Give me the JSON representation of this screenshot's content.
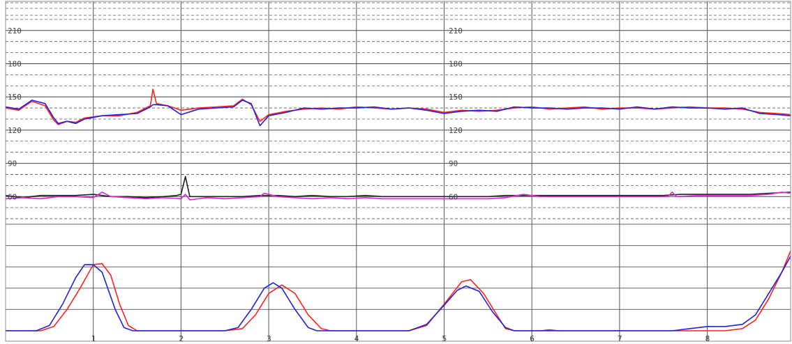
{
  "chart_data": {
    "type": "line",
    "grid": true,
    "x_ticks": [
      "1",
      "2",
      "3",
      "4",
      "5",
      "6",
      "7",
      "8"
    ],
    "xlim": [
      0,
      8.95
    ],
    "upper_panel": {
      "ylim": [
        35,
        230
      ],
      "y_ticks": [
        60,
        90,
        120,
        150,
        180,
        210
      ],
      "y_tick_labels": [
        "60",
        "90",
        "120",
        "150",
        "180",
        "210"
      ],
      "series": [
        {
          "color": "#ff2020",
          "points": [
            [
              0.0,
              140
            ],
            [
              0.15,
              138
            ],
            [
              0.3,
              146
            ],
            [
              0.45,
              142
            ],
            [
              0.55,
              129
            ],
            [
              0.6,
              125
            ],
            [
              0.7,
              128
            ],
            [
              0.8,
              127
            ],
            [
              0.9,
              131
            ],
            [
              1.1,
              133
            ],
            [
              1.3,
              133
            ],
            [
              1.5,
              136
            ],
            [
              1.65,
              142
            ],
            [
              1.68,
              157
            ],
            [
              1.72,
              144
            ],
            [
              1.85,
              142
            ],
            [
              2.0,
              138
            ],
            [
              2.2,
              140
            ],
            [
              2.4,
              141
            ],
            [
              2.6,
              142
            ],
            [
              2.7,
              148
            ],
            [
              2.8,
              143
            ],
            [
              2.9,
              128
            ],
            [
              3.0,
              134
            ],
            [
              3.2,
              137
            ],
            [
              3.4,
              139
            ],
            [
              3.6,
              140
            ],
            [
              3.8,
              139
            ],
            [
              4.0,
              141
            ],
            [
              4.2,
              140
            ],
            [
              4.4,
              139
            ],
            [
              4.6,
              140
            ],
            [
              4.8,
              139
            ],
            [
              5.0,
              136
            ],
            [
              5.2,
              138
            ],
            [
              5.4,
              137
            ],
            [
              5.6,
              138
            ],
            [
              5.8,
              140
            ],
            [
              6.0,
              141
            ],
            [
              6.2,
              139
            ],
            [
              6.4,
              140
            ],
            [
              6.6,
              141
            ],
            [
              6.8,
              139
            ],
            [
              7.0,
              140
            ],
            [
              7.2,
              140
            ],
            [
              7.4,
              139
            ],
            [
              7.6,
              140
            ],
            [
              7.8,
              141
            ],
            [
              8.0,
              140
            ],
            [
              8.2,
              140
            ],
            [
              8.4,
              139
            ],
            [
              8.6,
              136
            ],
            [
              8.8,
              135
            ],
            [
              8.95,
              134
            ]
          ]
        },
        {
          "color": "#2020e0",
          "points": [
            [
              0.0,
              141
            ],
            [
              0.15,
              139
            ],
            [
              0.3,
              147
            ],
            [
              0.45,
              144
            ],
            [
              0.55,
              131
            ],
            [
              0.6,
              126
            ],
            [
              0.7,
              128
            ],
            [
              0.8,
              126
            ],
            [
              0.9,
              130
            ],
            [
              1.1,
              133
            ],
            [
              1.3,
              134
            ],
            [
              1.5,
              135
            ],
            [
              1.65,
              141
            ],
            [
              1.68,
              143
            ],
            [
              1.72,
              143
            ],
            [
              1.85,
              142
            ],
            [
              2.0,
              134
            ],
            [
              2.2,
              139
            ],
            [
              2.4,
              140
            ],
            [
              2.6,
              141
            ],
            [
              2.7,
              147
            ],
            [
              2.8,
              144
            ],
            [
              2.9,
              124
            ],
            [
              3.0,
              133
            ],
            [
              3.2,
              136
            ],
            [
              3.4,
              140
            ],
            [
              3.6,
              139
            ],
            [
              3.8,
              140
            ],
            [
              4.0,
              140
            ],
            [
              4.2,
              141
            ],
            [
              4.4,
              139
            ],
            [
              4.6,
              140
            ],
            [
              4.8,
              138
            ],
            [
              5.0,
              135
            ],
            [
              5.2,
              137
            ],
            [
              5.4,
              138
            ],
            [
              5.6,
              137
            ],
            [
              5.8,
              141
            ],
            [
              6.0,
              140
            ],
            [
              6.2,
              140
            ],
            [
              6.4,
              139
            ],
            [
              6.6,
              140
            ],
            [
              6.8,
              140
            ],
            [
              7.0,
              139
            ],
            [
              7.2,
              141
            ],
            [
              7.4,
              139
            ],
            [
              7.6,
              141
            ],
            [
              7.8,
              140
            ],
            [
              8.0,
              140
            ],
            [
              8.2,
              139
            ],
            [
              8.4,
              140
            ],
            [
              8.6,
              135
            ],
            [
              8.8,
              134
            ],
            [
              8.95,
              133
            ]
          ]
        },
        {
          "color": "#202020",
          "points": [
            [
              0.0,
              61
            ],
            [
              0.2,
              59
            ],
            [
              0.4,
              61
            ],
            [
              0.6,
              61
            ],
            [
              0.8,
              61
            ],
            [
              1.0,
              62
            ],
            [
              1.2,
              60
            ],
            [
              1.4,
              60
            ],
            [
              1.6,
              59
            ],
            [
              1.8,
              60
            ],
            [
              1.95,
              61
            ],
            [
              2.0,
              62
            ],
            [
              2.05,
              78
            ],
            [
              2.1,
              60
            ],
            [
              2.3,
              60
            ],
            [
              2.5,
              60
            ],
            [
              2.7,
              60
            ],
            [
              2.9,
              61
            ],
            [
              3.1,
              61
            ],
            [
              3.3,
              60
            ],
            [
              3.5,
              61
            ],
            [
              3.7,
              60
            ],
            [
              3.9,
              60
            ],
            [
              4.1,
              61
            ],
            [
              4.3,
              60
            ],
            [
              4.5,
              60
            ],
            [
              4.7,
              60
            ],
            [
              4.9,
              60
            ],
            [
              5.1,
              60
            ],
            [
              5.3,
              60
            ],
            [
              5.5,
              60
            ],
            [
              5.7,
              61
            ],
            [
              5.9,
              61
            ],
            [
              6.1,
              61
            ],
            [
              6.3,
              61
            ],
            [
              6.5,
              61
            ],
            [
              6.7,
              61
            ],
            [
              6.9,
              61
            ],
            [
              7.1,
              61
            ],
            [
              7.3,
              61
            ],
            [
              7.5,
              61
            ],
            [
              7.7,
              62
            ],
            [
              7.9,
              62
            ],
            [
              8.1,
              62
            ],
            [
              8.3,
              62
            ],
            [
              8.5,
              62
            ],
            [
              8.7,
              63
            ],
            [
              8.95,
              64
            ]
          ]
        },
        {
          "color": "#e020e0",
          "points": [
            [
              0.0,
              58
            ],
            [
              0.2,
              59
            ],
            [
              0.4,
              58
            ],
            [
              0.6,
              60
            ],
            [
              0.8,
              60
            ],
            [
              1.0,
              59
            ],
            [
              1.1,
              64
            ],
            [
              1.2,
              60
            ],
            [
              1.4,
              59
            ],
            [
              1.6,
              58
            ],
            [
              1.8,
              59
            ],
            [
              2.0,
              58
            ],
            [
              2.05,
              62
            ],
            [
              2.1,
              57
            ],
            [
              2.3,
              59
            ],
            [
              2.5,
              58
            ],
            [
              2.7,
              59
            ],
            [
              2.9,
              60
            ],
            [
              2.95,
              63
            ],
            [
              3.1,
              60
            ],
            [
              3.3,
              59
            ],
            [
              3.5,
              58
            ],
            [
              3.7,
              59
            ],
            [
              3.9,
              58
            ],
            [
              4.1,
              59
            ],
            [
              4.3,
              58
            ],
            [
              4.5,
              58
            ],
            [
              4.7,
              58
            ],
            [
              4.9,
              58
            ],
            [
              5.1,
              58
            ],
            [
              5.3,
              58
            ],
            [
              5.5,
              58
            ],
            [
              5.7,
              59
            ],
            [
              5.9,
              62
            ],
            [
              6.1,
              60
            ],
            [
              6.3,
              60
            ],
            [
              6.5,
              60
            ],
            [
              6.7,
              60
            ],
            [
              6.9,
              60
            ],
            [
              7.1,
              60
            ],
            [
              7.3,
              60
            ],
            [
              7.55,
              60
            ],
            [
              7.6,
              64
            ],
            [
              7.65,
              60
            ],
            [
              7.9,
              61
            ],
            [
              8.1,
              61
            ],
            [
              8.3,
              61
            ],
            [
              8.5,
              61
            ],
            [
              8.7,
              62
            ],
            [
              8.85,
              64
            ],
            [
              8.95,
              63
            ]
          ]
        }
      ]
    },
    "lower_panel": {
      "ylim": [
        0,
        100
      ],
      "y_gridlines": [
        20,
        40,
        60,
        80
      ],
      "series": [
        {
          "color": "#ff2020",
          "points": [
            [
              0.0,
              0
            ],
            [
              0.4,
              0
            ],
            [
              0.55,
              4
            ],
            [
              0.7,
              20
            ],
            [
              0.85,
              40
            ],
            [
              1.0,
              62
            ],
            [
              1.1,
              63
            ],
            [
              1.2,
              52
            ],
            [
              1.3,
              25
            ],
            [
              1.4,
              5
            ],
            [
              1.5,
              0
            ],
            [
              2.5,
              0
            ],
            [
              2.7,
              2
            ],
            [
              2.85,
              15
            ],
            [
              3.0,
              35
            ],
            [
              3.15,
              43
            ],
            [
              3.3,
              35
            ],
            [
              3.45,
              15
            ],
            [
              3.6,
              2
            ],
            [
              3.7,
              0
            ],
            [
              4.6,
              0
            ],
            [
              4.8,
              5
            ],
            [
              5.0,
              25
            ],
            [
              5.2,
              46
            ],
            [
              5.3,
              48
            ],
            [
              5.45,
              35
            ],
            [
              5.6,
              15
            ],
            [
              5.7,
              2
            ],
            [
              5.8,
              0
            ],
            [
              6.1,
              0
            ],
            [
              6.2,
              1
            ],
            [
              6.3,
              0
            ],
            [
              7.8,
              0
            ],
            [
              8.2,
              0
            ],
            [
              8.4,
              2
            ],
            [
              8.55,
              10
            ],
            [
              8.7,
              30
            ],
            [
              8.85,
              55
            ],
            [
              8.95,
              75
            ]
          ]
        },
        {
          "color": "#2020e0",
          "points": [
            [
              0.0,
              0
            ],
            [
              0.35,
              0
            ],
            [
              0.5,
              5
            ],
            [
              0.65,
              25
            ],
            [
              0.8,
              50
            ],
            [
              0.9,
              62
            ],
            [
              1.0,
              62
            ],
            [
              1.1,
              55
            ],
            [
              1.25,
              20
            ],
            [
              1.35,
              3
            ],
            [
              1.45,
              0
            ],
            [
              2.5,
              0
            ],
            [
              2.65,
              3
            ],
            [
              2.8,
              20
            ],
            [
              2.95,
              40
            ],
            [
              3.05,
              45
            ],
            [
              3.15,
              40
            ],
            [
              3.3,
              20
            ],
            [
              3.45,
              3
            ],
            [
              3.55,
              0
            ],
            [
              4.6,
              0
            ],
            [
              4.8,
              6
            ],
            [
              5.0,
              24
            ],
            [
              5.15,
              38
            ],
            [
              5.25,
              42
            ],
            [
              5.4,
              37
            ],
            [
              5.55,
              18
            ],
            [
              5.7,
              3
            ],
            [
              5.8,
              0
            ],
            [
              7.6,
              0
            ],
            [
              7.8,
              2
            ],
            [
              8.0,
              4
            ],
            [
              8.2,
              4
            ],
            [
              8.4,
              6
            ],
            [
              8.55,
              15
            ],
            [
              8.7,
              35
            ],
            [
              8.85,
              55
            ],
            [
              8.95,
              70
            ]
          ]
        }
      ]
    }
  }
}
